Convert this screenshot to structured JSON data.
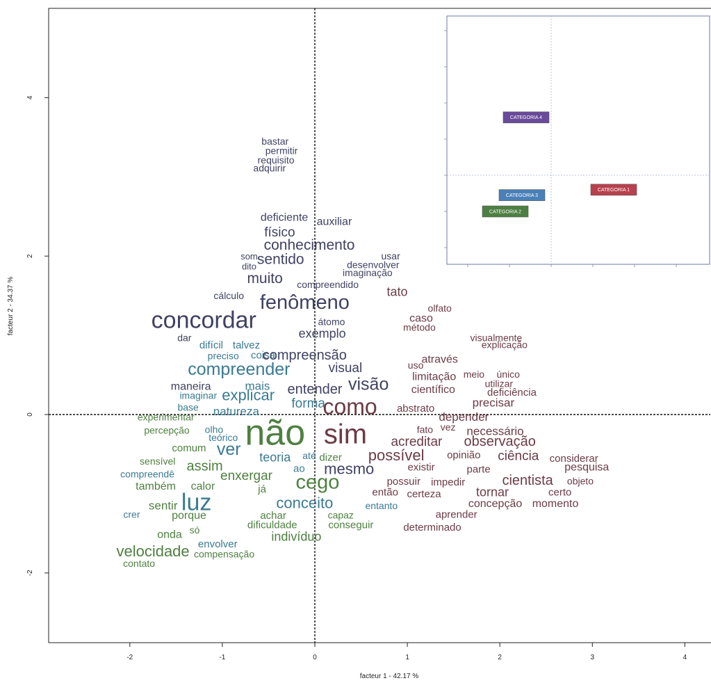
{
  "chart_data": {
    "type": "scatter",
    "xlabel": "facteur 1 - 42.17 %",
    "ylabel": "facteur 2 - 34.37 %",
    "xlim": [
      -2.9,
      4.2
    ],
    "ylim": [
      -2.9,
      5.2
    ],
    "x_ticks": [
      "-2",
      "-1",
      "0",
      "1",
      "2",
      "3",
      "4"
    ],
    "y_ticks": [
      "-2",
      "0",
      "2",
      "4"
    ],
    "colors": {
      "categoria_1": "#6b3b45",
      "categoria_2": "#4e8040",
      "categoria_3": "#3a7a92",
      "categoria_4": "#3f4262"
    },
    "words": [
      {
        "text": "bastar",
        "x": -0.43,
        "y": 3.44,
        "size": 14,
        "cat": "categoria_4"
      },
      {
        "text": "permitir",
        "x": -0.36,
        "y": 3.32,
        "size": 14,
        "cat": "categoria_4"
      },
      {
        "text": "requisito",
        "x": -0.42,
        "y": 3.2,
        "size": 14,
        "cat": "categoria_4"
      },
      {
        "text": "adquirir",
        "x": -0.49,
        "y": 3.1,
        "size": 14,
        "cat": "categoria_4"
      },
      {
        "text": "deficiente",
        "x": -0.33,
        "y": 2.48,
        "size": 16,
        "cat": "categoria_4"
      },
      {
        "text": "auxiliar",
        "x": 0.21,
        "y": 2.43,
        "size": 16,
        "cat": "categoria_4"
      },
      {
        "text": "físico",
        "x": -0.38,
        "y": 2.29,
        "size": 19,
        "cat": "categoria_4"
      },
      {
        "text": "conhecimento",
        "x": -0.06,
        "y": 2.13,
        "size": 21,
        "cat": "categoria_4"
      },
      {
        "text": "som",
        "x": -0.71,
        "y": 1.99,
        "size": 13,
        "cat": "categoria_4"
      },
      {
        "text": "sentido",
        "x": -0.37,
        "y": 1.95,
        "size": 21,
        "cat": "categoria_4"
      },
      {
        "text": "usar",
        "x": 0.82,
        "y": 1.99,
        "size": 14,
        "cat": "categoria_4"
      },
      {
        "text": "dito",
        "x": -0.71,
        "y": 1.86,
        "size": 13,
        "cat": "categoria_4"
      },
      {
        "text": "desenvolver",
        "x": 0.63,
        "y": 1.88,
        "size": 14,
        "cat": "categoria_4"
      },
      {
        "text": "imaginação",
        "x": 0.57,
        "y": 1.78,
        "size": 14,
        "cat": "categoria_4"
      },
      {
        "text": "muito",
        "x": -0.54,
        "y": 1.71,
        "size": 21,
        "cat": "categoria_4"
      },
      {
        "text": "compreendido",
        "x": 0.14,
        "y": 1.63,
        "size": 14,
        "cat": "categoria_4"
      },
      {
        "text": "tato",
        "x": 0.89,
        "y": 1.54,
        "size": 18,
        "cat": "categoria_1"
      },
      {
        "text": "cálculo",
        "x": -0.93,
        "y": 1.49,
        "size": 14,
        "cat": "categoria_4"
      },
      {
        "text": "fenômeno",
        "x": -0.11,
        "y": 1.4,
        "size": 29,
        "cat": "categoria_4"
      },
      {
        "text": "olfato",
        "x": 1.35,
        "y": 1.33,
        "size": 14,
        "cat": "categoria_1"
      },
      {
        "text": "caso",
        "x": 1.15,
        "y": 1.21,
        "size": 16,
        "cat": "categoria_1"
      },
      {
        "text": "concordar",
        "x": -1.2,
        "y": 1.17,
        "size": 34,
        "cat": "categoria_4"
      },
      {
        "text": "átomo",
        "x": 0.18,
        "y": 1.16,
        "size": 14,
        "cat": "categoria_4"
      },
      {
        "text": "método",
        "x": 1.13,
        "y": 1.09,
        "size": 14,
        "cat": "categoria_1"
      },
      {
        "text": "exemplo",
        "x": 0.08,
        "y": 1.01,
        "size": 18,
        "cat": "categoria_4"
      },
      {
        "text": "dar",
        "x": -1.41,
        "y": 0.96,
        "size": 14,
        "cat": "categoria_4"
      },
      {
        "text": "visualmente",
        "x": 1.96,
        "y": 0.96,
        "size": 14,
        "cat": "categoria_1"
      },
      {
        "text": "difícil",
        "x": -1.12,
        "y": 0.87,
        "size": 15,
        "cat": "categoria_3"
      },
      {
        "text": "talvez",
        "x": -0.74,
        "y": 0.87,
        "size": 15,
        "cat": "categoria_3"
      },
      {
        "text": "explicação",
        "x": 2.05,
        "y": 0.87,
        "size": 14,
        "cat": "categoria_1"
      },
      {
        "text": "preciso",
        "x": -0.99,
        "y": 0.73,
        "size": 14,
        "cat": "categoria_3"
      },
      {
        "text": "coisa",
        "x": -0.56,
        "y": 0.74,
        "size": 15,
        "cat": "categoria_3"
      },
      {
        "text": "compreensão",
        "x": -0.11,
        "y": 0.74,
        "size": 20,
        "cat": "categoria_4"
      },
      {
        "text": "através",
        "x": 1.35,
        "y": 0.69,
        "size": 16,
        "cat": "categoria_1"
      },
      {
        "text": "compreender",
        "x": -0.82,
        "y": 0.56,
        "size": 25,
        "cat": "categoria_3"
      },
      {
        "text": "visual",
        "x": 0.33,
        "y": 0.58,
        "size": 19,
        "cat": "categoria_4"
      },
      {
        "text": "uso",
        "x": 1.09,
        "y": 0.61,
        "size": 14,
        "cat": "categoria_1"
      },
      {
        "text": "limitação",
        "x": 1.29,
        "y": 0.47,
        "size": 16,
        "cat": "categoria_1"
      },
      {
        "text": "meio",
        "x": 1.72,
        "y": 0.5,
        "size": 14,
        "cat": "categoria_1"
      },
      {
        "text": "único",
        "x": 2.09,
        "y": 0.5,
        "size": 14,
        "cat": "categoria_1"
      },
      {
        "text": "utilizar",
        "x": 1.99,
        "y": 0.38,
        "size": 14,
        "cat": "categoria_1"
      },
      {
        "text": "maneira",
        "x": -1.34,
        "y": 0.35,
        "size": 16,
        "cat": "categoria_4"
      },
      {
        "text": "mais",
        "x": -0.62,
        "y": 0.35,
        "size": 17,
        "cat": "categoria_3"
      },
      {
        "text": "visão",
        "x": 0.58,
        "y": 0.37,
        "size": 25,
        "cat": "categoria_4"
      },
      {
        "text": "entender",
        "x": 0.0,
        "y": 0.31,
        "size": 20,
        "cat": "categoria_4"
      },
      {
        "text": "científico",
        "x": 1.28,
        "y": 0.31,
        "size": 16,
        "cat": "categoria_1"
      },
      {
        "text": "deficiência",
        "x": 2.13,
        "y": 0.27,
        "size": 15,
        "cat": "categoria_1"
      },
      {
        "text": "imaginar",
        "x": -1.26,
        "y": 0.23,
        "size": 14,
        "cat": "categoria_3"
      },
      {
        "text": "explicar",
        "x": -0.72,
        "y": 0.23,
        "size": 22,
        "cat": "categoria_3"
      },
      {
        "text": "forma",
        "x": -0.07,
        "y": 0.13,
        "size": 19,
        "cat": "categoria_3"
      },
      {
        "text": "precisar",
        "x": 1.93,
        "y": 0.14,
        "size": 17,
        "cat": "categoria_1"
      },
      {
        "text": "como",
        "x": 0.38,
        "y": 0.08,
        "size": 32,
        "cat": "categoria_1"
      },
      {
        "text": "base",
        "x": -1.37,
        "y": 0.08,
        "size": 14,
        "cat": "categoria_3"
      },
      {
        "text": "natureza",
        "x": -0.85,
        "y": 0.03,
        "size": 17,
        "cat": "categoria_3"
      },
      {
        "text": "abstrato",
        "x": 1.09,
        "y": 0.07,
        "size": 15,
        "cat": "categoria_1"
      },
      {
        "text": "experimentar",
        "x": -1.61,
        "y": -0.04,
        "size": 14,
        "cat": "categoria_2"
      },
      {
        "text": "depender",
        "x": 1.61,
        "y": -0.04,
        "size": 17,
        "cat": "categoria_1"
      },
      {
        "text": "fato",
        "x": 1.19,
        "y": -0.2,
        "size": 14,
        "cat": "categoria_1"
      },
      {
        "text": "vez",
        "x": 1.44,
        "y": -0.17,
        "size": 14,
        "cat": "categoria_1"
      },
      {
        "text": "necessário",
        "x": 1.95,
        "y": -0.22,
        "size": 17,
        "cat": "categoria_1"
      },
      {
        "text": "percepção",
        "x": -1.6,
        "y": -0.21,
        "size": 14,
        "cat": "categoria_2"
      },
      {
        "text": "olho",
        "x": -1.09,
        "y": -0.2,
        "size": 14,
        "cat": "categoria_3"
      },
      {
        "text": "não",
        "x": -0.43,
        "y": -0.26,
        "size": 52,
        "cat": "categoria_2"
      },
      {
        "text": "sim",
        "x": 0.33,
        "y": -0.27,
        "size": 40,
        "cat": "categoria_1"
      },
      {
        "text": "teórico",
        "x": -0.99,
        "y": -0.3,
        "size": 14,
        "cat": "categoria_3"
      },
      {
        "text": "acreditar",
        "x": 1.1,
        "y": -0.35,
        "size": 19,
        "cat": "categoria_1"
      },
      {
        "text": "observação",
        "x": 2.0,
        "y": -0.35,
        "size": 20,
        "cat": "categoria_1"
      },
      {
        "text": "comum",
        "x": -1.36,
        "y": -0.43,
        "size": 15,
        "cat": "categoria_2"
      },
      {
        "text": "ver",
        "x": -0.93,
        "y": -0.45,
        "size": 25,
        "cat": "categoria_3"
      },
      {
        "text": "teoria",
        "x": -0.43,
        "y": -0.55,
        "size": 18,
        "cat": "categoria_3"
      },
      {
        "text": "até",
        "x": -0.06,
        "y": -0.53,
        "size": 14,
        "cat": "categoria_3"
      },
      {
        "text": "dizer",
        "x": 0.17,
        "y": -0.55,
        "size": 15,
        "cat": "categoria_2"
      },
      {
        "text": "possível",
        "x": 0.88,
        "y": -0.53,
        "size": 22,
        "cat": "categoria_1"
      },
      {
        "text": "opinião",
        "x": 1.61,
        "y": -0.52,
        "size": 15,
        "cat": "categoria_1"
      },
      {
        "text": "ciência",
        "x": 2.2,
        "y": -0.53,
        "size": 19,
        "cat": "categoria_1"
      },
      {
        "text": "considerar",
        "x": 2.8,
        "y": -0.56,
        "size": 15,
        "cat": "categoria_1"
      },
      {
        "text": "sensível",
        "x": -1.7,
        "y": -0.6,
        "size": 14,
        "cat": "categoria_2"
      },
      {
        "text": "assim",
        "x": -1.19,
        "y": -0.66,
        "size": 20,
        "cat": "categoria_2"
      },
      {
        "text": "mesmo",
        "x": 0.37,
        "y": -0.7,
        "size": 22,
        "cat": "categoria_4"
      },
      {
        "text": "ao",
        "x": -0.17,
        "y": -0.69,
        "size": 15,
        "cat": "categoria_3"
      },
      {
        "text": "existir",
        "x": 1.15,
        "y": -0.67,
        "size": 15,
        "cat": "categoria_1"
      },
      {
        "text": "parte",
        "x": 1.77,
        "y": -0.7,
        "size": 15,
        "cat": "categoria_1"
      },
      {
        "text": "pesquisa",
        "x": 2.94,
        "y": -0.67,
        "size": 16,
        "cat": "categoria_1"
      },
      {
        "text": "compreendê",
        "x": -1.81,
        "y": -0.76,
        "size": 14,
        "cat": "categoria_3"
      },
      {
        "text": "enxergar",
        "x": -0.74,
        "y": -0.78,
        "size": 19,
        "cat": "categoria_2"
      },
      {
        "text": "cego",
        "x": 0.03,
        "y": -0.87,
        "size": 29,
        "cat": "categoria_2"
      },
      {
        "text": "cientista",
        "x": 2.3,
        "y": -0.84,
        "size": 20,
        "cat": "categoria_1"
      },
      {
        "text": "objeto",
        "x": 2.87,
        "y": -0.85,
        "size": 14,
        "cat": "categoria_1"
      },
      {
        "text": "também",
        "x": -1.72,
        "y": -0.91,
        "size": 16,
        "cat": "categoria_2"
      },
      {
        "text": "calor",
        "x": -1.21,
        "y": -0.91,
        "size": 16,
        "cat": "categoria_2"
      },
      {
        "text": "possuir",
        "x": 0.96,
        "y": -0.85,
        "size": 15,
        "cat": "categoria_1"
      },
      {
        "text": "impedir",
        "x": 1.44,
        "y": -0.86,
        "size": 15,
        "cat": "categoria_1"
      },
      {
        "text": "já",
        "x": -0.57,
        "y": -0.95,
        "size": 15,
        "cat": "categoria_2"
      },
      {
        "text": "então",
        "x": 0.76,
        "y": -0.99,
        "size": 15,
        "cat": "categoria_1"
      },
      {
        "text": "certeza",
        "x": 1.18,
        "y": -1.01,
        "size": 15,
        "cat": "categoria_1"
      },
      {
        "text": "tornar",
        "x": 1.92,
        "y": -0.99,
        "size": 18,
        "cat": "categoria_1"
      },
      {
        "text": "certo",
        "x": 2.65,
        "y": -0.99,
        "size": 15,
        "cat": "categoria_1"
      },
      {
        "text": "luz",
        "x": -1.28,
        "y": -1.13,
        "size": 34,
        "cat": "categoria_3"
      },
      {
        "text": "conceito",
        "x": -0.11,
        "y": -1.13,
        "size": 22,
        "cat": "categoria_3"
      },
      {
        "text": "entanto",
        "x": 0.72,
        "y": -1.16,
        "size": 14,
        "cat": "categoria_3"
      },
      {
        "text": "concepção",
        "x": 1.95,
        "y": -1.13,
        "size": 16,
        "cat": "categoria_1"
      },
      {
        "text": "momento",
        "x": 2.6,
        "y": -1.13,
        "size": 16,
        "cat": "categoria_1"
      },
      {
        "text": "sentir",
        "x": -1.64,
        "y": -1.16,
        "size": 17,
        "cat": "categoria_2"
      },
      {
        "text": "crer",
        "x": -1.98,
        "y": -1.27,
        "size": 14,
        "cat": "categoria_3"
      },
      {
        "text": "porque",
        "x": -1.36,
        "y": -1.28,
        "size": 16,
        "cat": "categoria_2"
      },
      {
        "text": "achar",
        "x": -0.45,
        "y": -1.28,
        "size": 15,
        "cat": "categoria_2"
      },
      {
        "text": "capaz",
        "x": 0.28,
        "y": -1.28,
        "size": 14,
        "cat": "categoria_2"
      },
      {
        "text": "aprender",
        "x": 1.53,
        "y": -1.27,
        "size": 15,
        "cat": "categoria_1"
      },
      {
        "text": "dificuldade",
        "x": -0.46,
        "y": -1.4,
        "size": 15,
        "cat": "categoria_2"
      },
      {
        "text": "conseguir",
        "x": 0.39,
        "y": -1.4,
        "size": 15,
        "cat": "categoria_2"
      },
      {
        "text": "determinado",
        "x": 1.27,
        "y": -1.43,
        "size": 15,
        "cat": "categoria_1"
      },
      {
        "text": "só",
        "x": -1.3,
        "y": -1.47,
        "size": 14,
        "cat": "categoria_2"
      },
      {
        "text": "onda",
        "x": -1.57,
        "y": -1.52,
        "size": 16,
        "cat": "categoria_2"
      },
      {
        "text": "indivíduo",
        "x": -0.2,
        "y": -1.55,
        "size": 18,
        "cat": "categoria_2"
      },
      {
        "text": "envolver",
        "x": -1.05,
        "y": -1.64,
        "size": 15,
        "cat": "categoria_3"
      },
      {
        "text": "velocidade",
        "x": -1.75,
        "y": -1.74,
        "size": 22,
        "cat": "categoria_2"
      },
      {
        "text": "compensação",
        "x": -0.98,
        "y": -1.77,
        "size": 14,
        "cat": "categoria_2"
      },
      {
        "text": "contato",
        "x": -1.9,
        "y": -1.89,
        "size": 14,
        "cat": "categoria_2"
      }
    ],
    "inset": {
      "categories": [
        {
          "label": "CATEGORIA 4",
          "x": -0.6,
          "y": 1.6,
          "color": "#6a4a9a"
        },
        {
          "label": "CATEGORIA 3",
          "x": -0.7,
          "y": -0.55,
          "color": "#4a80b8"
        },
        {
          "label": "CATEGORIA 2",
          "x": -1.1,
          "y": -1.0,
          "color": "#4d7f43"
        },
        {
          "label": "CATEGORIA 1",
          "x": 1.5,
          "y": -0.4,
          "color": "#b8414d"
        }
      ]
    }
  }
}
